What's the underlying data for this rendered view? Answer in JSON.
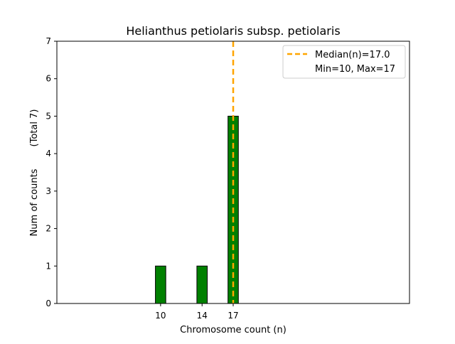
{
  "chart_data": {
    "type": "bar",
    "title": "Helianthus petiolaris subsp. petiolaris",
    "xlabel": "Chromosome count (n)",
    "ylabel": "Num of counts",
    "ylabel_total": "(Total 7)",
    "x": [
      10,
      14,
      17
    ],
    "values": [
      1,
      1,
      5
    ],
    "xticks": [
      10,
      14,
      17
    ],
    "yticks": [
      0,
      1,
      2,
      3,
      4,
      5,
      6,
      7
    ],
    "xlim": [
      0,
      34
    ],
    "ylim": [
      0,
      7
    ],
    "bar_color": "#008000",
    "bar_edge_color": "#000000",
    "median_line": {
      "value": 17.0,
      "color": "#ffa500"
    },
    "legend": {
      "position": "top-right",
      "entries": [
        "Median(n)=17.0",
        "Min=10, Max=17"
      ]
    }
  }
}
